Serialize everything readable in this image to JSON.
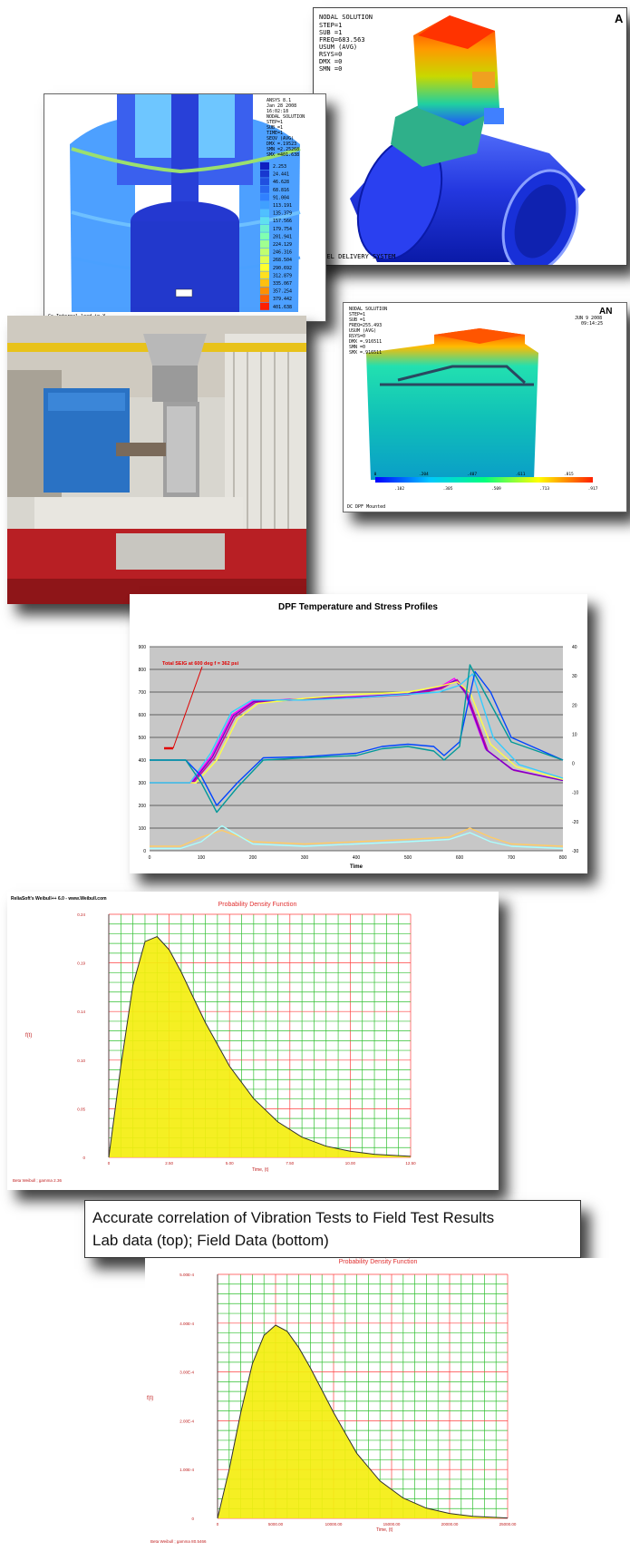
{
  "fea_top_right": {
    "header_lines": [
      "NODAL SOLUTION",
      "STEP=1",
      "SUB =1",
      "FREQ=683.563",
      "USUM (AVG)",
      "RSYS=0",
      "DMX =0",
      "SMN =0"
    ],
    "footer": "FUEL DELIVERY SYSTEM",
    "logo": "A"
  },
  "fea_left": {
    "header_lines": [
      "ANSYS 8.1",
      "Jan 28 2008",
      "16:02:18",
      "NODAL SOLUTION",
      "STEP=1",
      "SUB =1",
      "TIME=1",
      "SEQV (AVG)",
      "DMX =.19523",
      "SMN =2.25268",
      "SMX =401.638"
    ],
    "legend_values": [
      "2.253",
      "24.441",
      "46.628",
      "68.816",
      "91.004",
      "113.191",
      "135.379",
      "157.566",
      "179.754",
      "201.941",
      "224.129",
      "246.316",
      "268.504",
      "290.692",
      "312.879",
      "335.067",
      "357.254",
      "379.442",
      "401.638"
    ],
    "footer": "Cs Internal load in Y"
  },
  "fea_mid_right": {
    "header_lines": [
      "NODAL SOLUTION",
      "STEP=1",
      "SUB =1",
      "FREQ=255.493",
      "USUM (AVG)",
      "RSYS=0",
      "DMX =.916511",
      "SMN =0",
      "SMX =.916511"
    ],
    "date_lines": [
      "JUN 9 2008",
      "09:14:25"
    ],
    "logo": "AN",
    "colorbar_ticks": [
      "0",
      ".102",
      ".204",
      ".305",
      ".407",
      ".509",
      ".611",
      ".713",
      ".815",
      ".917"
    ],
    "footer": "DC DPF Mounted"
  },
  "dpf_chart": {
    "chart_data": {
      "type": "line",
      "title": "DPF Temperature and Stress Profiles",
      "xlabel": "Time",
      "ylabel": "",
      "xlim": [
        0,
        800
      ],
      "ylim": [
        0,
        900
      ],
      "y2lim": [
        -30,
        40
      ],
      "x_ticks": [
        "0",
        "100",
        "200",
        "300",
        "400",
        "500",
        "600",
        "700",
        "800"
      ],
      "y_ticks": [
        "0",
        "100",
        "200",
        "300",
        "400",
        "500",
        "600",
        "700",
        "800",
        "900"
      ],
      "y2_ticks": [
        "-30",
        "-20",
        "-10",
        "0",
        "10",
        "20",
        "30",
        "40"
      ],
      "annotation": "Total SEIG at 600 deg f = 362 psi",
      "series": [
        {
          "color": "#ff00ff",
          "x": [
            0,
            80,
            120,
            160,
            200,
            300,
            400,
            500,
            560,
            590,
            610,
            650,
            700,
            800
          ],
          "y": [
            300,
            300,
            420,
            600,
            660,
            670,
            680,
            690,
            720,
            760,
            700,
            450,
            360,
            310
          ]
        },
        {
          "color": "#cc0099",
          "x": [
            0,
            85,
            125,
            165,
            205,
            300,
            400,
            500,
            565,
            595,
            615,
            655,
            705,
            800
          ],
          "y": [
            300,
            300,
            410,
            590,
            655,
            668,
            675,
            688,
            715,
            755,
            690,
            440,
            355,
            310
          ]
        },
        {
          "color": "#7700cc",
          "x": [
            0,
            82,
            122,
            162,
            202,
            300,
            400,
            500,
            562,
            592,
            612,
            652,
            702,
            800
          ],
          "y": [
            300,
            300,
            415,
            595,
            658,
            670,
            678,
            692,
            718,
            752,
            695,
            445,
            358,
            310
          ]
        },
        {
          "color": "#ffff44",
          "x": [
            0,
            90,
            130,
            170,
            210,
            300,
            400,
            500,
            560,
            595,
            620,
            660,
            710,
            800
          ],
          "y": [
            300,
            300,
            400,
            580,
            650,
            672,
            690,
            700,
            725,
            745,
            700,
            470,
            370,
            315
          ]
        },
        {
          "color": "#33ccff",
          "x": [
            0,
            78,
            118,
            158,
            198,
            300,
            400,
            500,
            560,
            600,
            625,
            665,
            715,
            800
          ],
          "y": [
            300,
            300,
            430,
            610,
            665,
            665,
            675,
            690,
            700,
            730,
            780,
            500,
            380,
            320
          ]
        },
        {
          "color": "#0044ff",
          "x": [
            0,
            70,
            100,
            130,
            170,
            220,
            300,
            400,
            450,
            500,
            550,
            570,
            600,
            630,
            660,
            700,
            800
          ],
          "y": [
            400,
            400,
            330,
            200,
            300,
            410,
            415,
            430,
            460,
            470,
            460,
            420,
            480,
            790,
            700,
            500,
            400
          ]
        },
        {
          "color": "#009999",
          "x": [
            0,
            70,
            100,
            130,
            170,
            220,
            300,
            400,
            450,
            500,
            550,
            570,
            600,
            620,
            650,
            700,
            800
          ],
          "y": [
            400,
            400,
            300,
            170,
            280,
            400,
            410,
            420,
            450,
            460,
            440,
            400,
            460,
            820,
            690,
            480,
            400
          ]
        },
        {
          "color": "#ffcc66",
          "x": [
            0,
            60,
            100,
            140,
            200,
            300,
            400,
            500,
            580,
            620,
            660,
            700,
            800
          ],
          "y": [
            20,
            20,
            60,
            90,
            40,
            30,
            40,
            50,
            60,
            100,
            60,
            30,
            20
          ]
        },
        {
          "color": "#aaffff",
          "x": [
            0,
            60,
            100,
            140,
            200,
            300,
            400,
            500,
            580,
            620,
            660,
            700,
            800
          ],
          "y": [
            10,
            10,
            40,
            110,
            30,
            20,
            30,
            40,
            50,
            80,
            40,
            20,
            10
          ]
        }
      ]
    }
  },
  "pdf_top": {
    "top_left_label": "ReliaSoft's Weibull++ 6.0 - www.Weibull.com",
    "title": "Probability Density Function",
    "ylabel": "f(t)",
    "xlabel": "Time, (t)",
    "footer": "Beta  Weibull ; gamma 2.36",
    "chart_data": {
      "type": "area",
      "title": "Probability Density Function",
      "xlabel": "Time, (t)",
      "ylabel": "f(t)",
      "xlim": [
        0,
        12.5
      ],
      "ylim": [
        0,
        0.24
      ],
      "x_ticks": [
        "0",
        "2.50",
        "5.00",
        "7.50",
        "10.00",
        "12.50"
      ],
      "y_ticks": [
        "0",
        "0.05",
        "0.10",
        "0.14",
        "0.19",
        "0.24"
      ],
      "x": [
        0,
        0.5,
        1,
        1.5,
        2,
        2.5,
        3,
        3.5,
        4,
        5,
        6,
        7,
        8,
        9,
        10,
        11,
        12.5
      ],
      "y": [
        0,
        0.09,
        0.17,
        0.213,
        0.218,
        0.205,
        0.183,
        0.158,
        0.133,
        0.09,
        0.058,
        0.035,
        0.02,
        0.011,
        0.006,
        0.003,
        0.001
      ]
    }
  },
  "caption": {
    "line1": "Accurate correlation of Vibration Tests to Field Test Results",
    "line2": "Lab data (top); Field Data (bottom)"
  },
  "pdf_bottom": {
    "title": "Probability Density Function",
    "ylabel": "f(t)",
    "xlabel": "Time, (t)",
    "footer": "Beta  Weibull ; gamma 80.5466",
    "chart_data": {
      "type": "area",
      "title": "Probability Density Function",
      "xlabel": "Time, (t)",
      "ylabel": "f(t)",
      "xlim": [
        0,
        25000
      ],
      "ylim": [
        0,
        0.0006
      ],
      "x_ticks": [
        "0",
        "5000.00",
        "10000.00",
        "15000.00",
        "20000.00",
        "25000.00"
      ],
      "y_ticks": [
        "0",
        "1.00E-4",
        "2.00E-4",
        "3.00E-4",
        "4.00E-4",
        "5.00E-4"
      ],
      "x": [
        0,
        1000,
        2000,
        3000,
        4000,
        5000,
        6000,
        7000,
        8000,
        10000,
        12000,
        14000,
        16000,
        18000,
        20000,
        22000,
        25000
      ],
      "y": [
        0,
        0.00012,
        0.00026,
        0.00038,
        0.00045,
        0.000475,
        0.00046,
        0.00042,
        0.00037,
        0.00026,
        0.00016,
        9.2e-05,
        5e-05,
        2.5e-05,
        1.2e-05,
        5e-06,
        1e-06
      ]
    }
  }
}
